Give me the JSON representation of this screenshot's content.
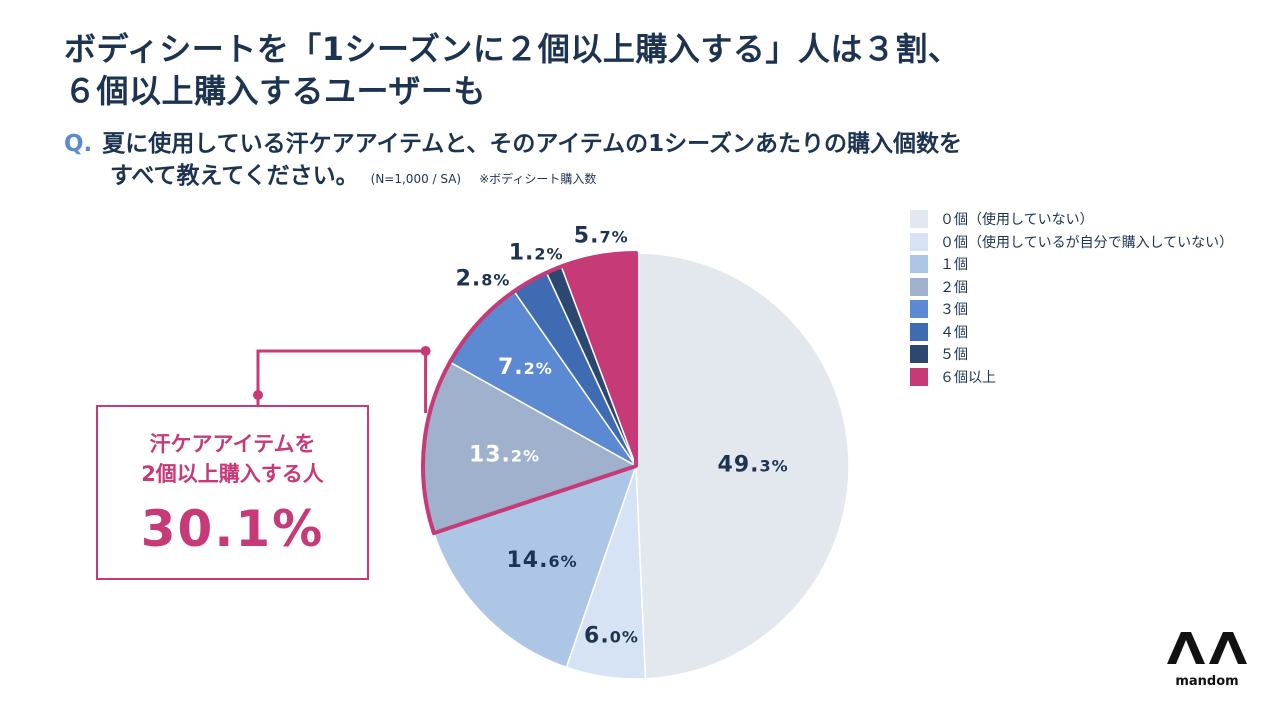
{
  "header": {
    "title_line1": "ボディシートを「1シーズンに２個以上購入する」人は３割、",
    "title_line2": "６個以上購入するユーザーも"
  },
  "question": {
    "mark": "Q.",
    "line1": "夏に使用している汗ケアアイテムと、そのアイテムの1シーズンあたりの購入個数を",
    "line2": "すべて教えてください。",
    "note": "(N=1,000 / SA)",
    "note2": "※ボディシート購入数"
  },
  "callout": {
    "line1": "汗ケアアイテムを",
    "line2": "2個以上購入する人",
    "value": "30.1%"
  },
  "logo": {
    "brand": "mandom",
    "mark_icon": "mandom-logo-icon"
  },
  "chart_data": {
    "type": "pie",
    "start": "12 o'clock",
    "direction": "clockwise",
    "unit": "%",
    "slices": [
      {
        "label": "０個（使用していない）",
        "value": 49.3,
        "display_int": "49.",
        "display_dec": "3%",
        "color": "#e3e8ef",
        "text_color": "#1d3451"
      },
      {
        "label": "０個（使用しているが自分で購入していない）",
        "value": 6.0,
        "display_int": "6.",
        "display_dec": "0%",
        "color": "#d6e3f5",
        "text_color": "#1d3451"
      },
      {
        "label": "１個",
        "value": 14.6,
        "display_int": "14.",
        "display_dec": "6%",
        "color": "#aec6e6",
        "text_color": "#1d3451"
      },
      {
        "label": "２個",
        "value": 13.2,
        "display_int": "13.",
        "display_dec": "2%",
        "color": "#9fb1cc",
        "text_color": "#ffffff"
      },
      {
        "label": "３個",
        "value": 7.2,
        "display_int": "7.",
        "display_dec": "2%",
        "color": "#5b8ad3",
        "text_color": "#ffffff"
      },
      {
        "label": "４個",
        "value": 2.8,
        "display_int": "2.",
        "display_dec": "8%",
        "color": "#3f6bb3",
        "text_color": "#1d3451"
      },
      {
        "label": "５個",
        "value": 1.2,
        "display_int": "1.",
        "display_dec": "2%",
        "color": "#2c4870",
        "text_color": "#1d3451"
      },
      {
        "label": "６個以上",
        "value": 5.7,
        "display_int": "5.",
        "display_dec": "7%",
        "color": "#c73a78",
        "text_color": "#1d3451"
      }
    ],
    "highlight_group": {
      "from_index": 3,
      "to_index": 7,
      "color": "#c73a78",
      "label": "2個以上購入する人",
      "total": 30.1
    }
  }
}
